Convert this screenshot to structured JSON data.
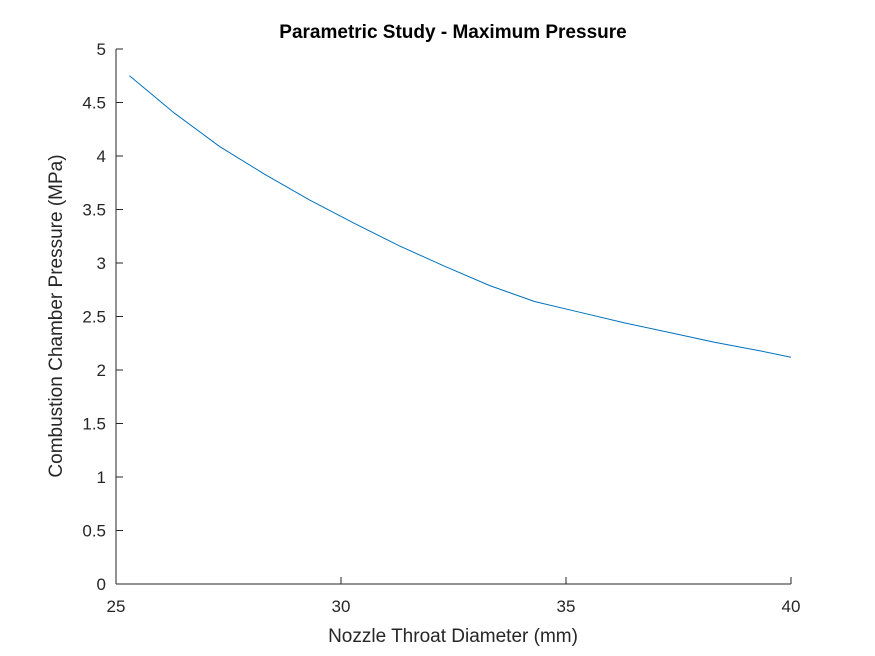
{
  "chart_data": {
    "type": "line",
    "title": "Parametric Study - Maximum Pressure",
    "xlabel": "Nozzle Throat Diameter (mm)",
    "ylabel": "Combustion Chamber Pressure (MPa)",
    "xlim": [
      25,
      40
    ],
    "ylim": [
      0,
      5
    ],
    "xticks": [
      "25",
      "30",
      "35",
      "40"
    ],
    "yticks": [
      "0",
      "0.5",
      "1",
      "1.5",
      "2",
      "2.5",
      "3",
      "3.5",
      "4",
      "4.5",
      "5"
    ],
    "grid": false,
    "box": false,
    "series": [
      {
        "color": "#0072BD",
        "x": [
          25.3,
          26.3,
          27.3,
          28.3,
          29.3,
          30.3,
          31.3,
          32.3,
          33.3,
          34.3,
          35.3,
          36.3,
          37.3,
          38.3,
          39.3,
          40.0
        ],
        "y": [
          4.75,
          4.4,
          4.09,
          3.83,
          3.59,
          3.37,
          3.16,
          2.97,
          2.79,
          2.64,
          2.54,
          2.44,
          2.35,
          2.26,
          2.18,
          2.12
        ]
      }
    ]
  }
}
